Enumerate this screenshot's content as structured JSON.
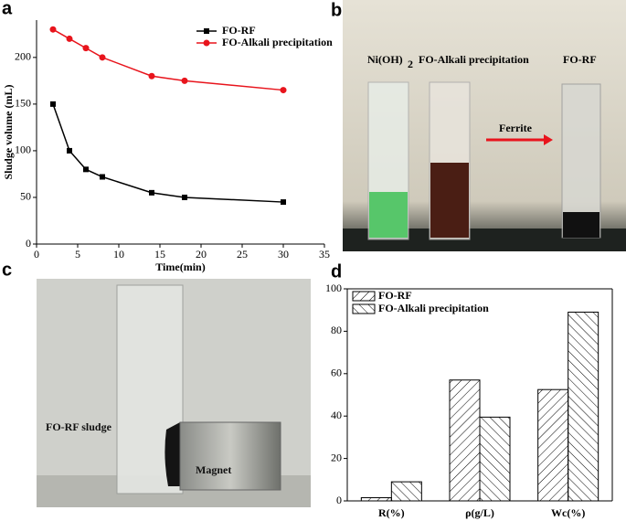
{
  "panel_labels": [
    "a",
    "b",
    "c",
    "d"
  ],
  "photo_b": {
    "labels": [
      "Ni(OH)",
      "2",
      "FO-Alkali precipitation",
      "Ferrite",
      "FO-RF"
    ]
  },
  "photo_c": {
    "labels": [
      "FO-RF sludge",
      "Magnet"
    ]
  },
  "chart_data": [
    {
      "type": "line",
      "x_label": "Time(min)",
      "y_label": "Sludge volume (mL)",
      "x": [
        2,
        4,
        6,
        8,
        14,
        18,
        30
      ],
      "series": [
        {
          "name": "FO-RF",
          "color": "#000000",
          "marker": "square",
          "values": [
            150,
            100,
            80,
            72,
            55,
            50,
            45
          ]
        },
        {
          "name": "FO-Alkali precipitation",
          "color": "#e8141c",
          "marker": "circle",
          "values": [
            230,
            220,
            210,
            200,
            180,
            175,
            165
          ]
        }
      ],
      "xlim": [
        0,
        35
      ],
      "xticks": [
        0,
        5,
        10,
        15,
        20,
        25,
        30,
        35
      ],
      "ylim": [
        0,
        240
      ],
      "yticks": [
        0,
        50,
        100,
        150,
        200
      ],
      "legend": "upper right"
    },
    {
      "type": "bar",
      "categories": [
        "R(%)",
        "ρ(g/L)",
        "Wc(%)"
      ],
      "series": [
        {
          "name": "FO-RF",
          "color": "#000000",
          "hatch": "/",
          "values": [
            1.5,
            57,
            52.5
          ]
        },
        {
          "name": "FO-Alkali precipitation",
          "color": "#000000",
          "hatch": "\\",
          "values": [
            9,
            39.5,
            89
          ]
        }
      ],
      "ylim": [
        0,
        100
      ],
      "yticks": [
        0,
        20,
        40,
        60,
        80,
        100
      ],
      "legend": "upper left"
    }
  ]
}
